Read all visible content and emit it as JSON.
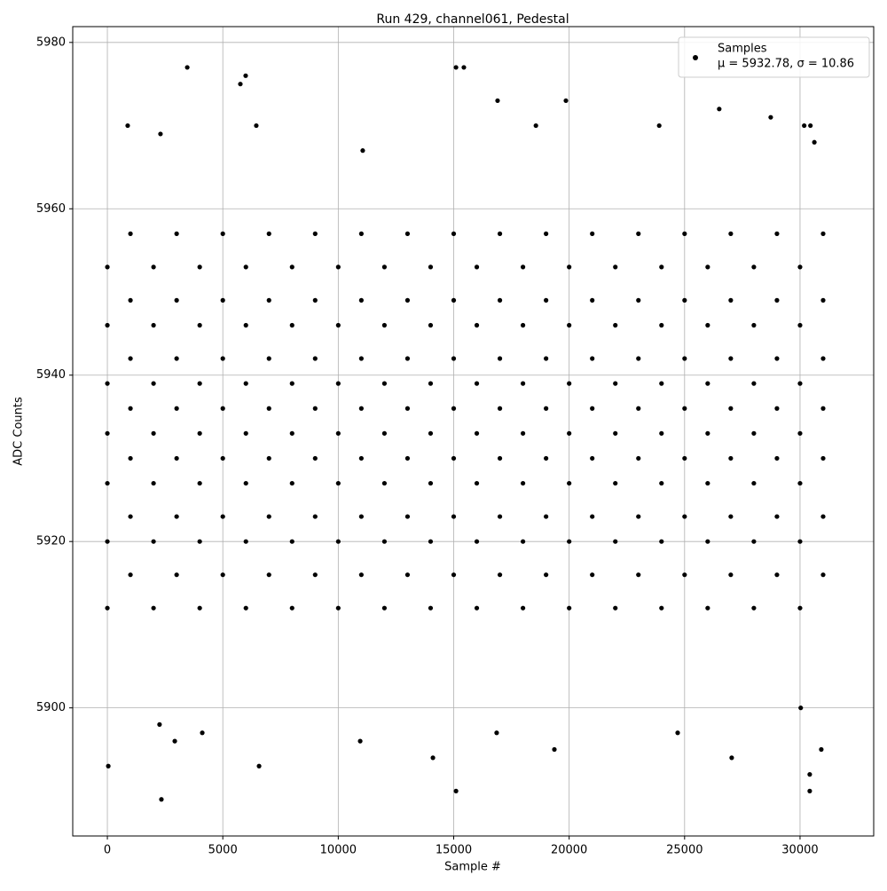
{
  "chart_data": {
    "type": "scatter",
    "title": "Run 429, channel061, Pedestal",
    "x_label": "Sample #",
    "y_label": "ADC Counts",
    "legend_note": "μ = 5932.78, σ = 10.86",
    "legend_position": "upper right",
    "grid": true,
    "xlim": [
      -1500,
      33190
    ],
    "ylim": [
      5884.6,
      5981.9
    ],
    "xticks": [
      0,
      5000,
      10000,
      15000,
      20000,
      25000,
      30000
    ],
    "yticks": [
      5900,
      5920,
      5940,
      5960,
      5980
    ],
    "x": [
      0,
      0,
      0,
      0,
      0,
      0,
      0,
      1000,
      1000,
      1000,
      1000,
      1000,
      1000,
      1000,
      2000,
      2000,
      2000,
      2000,
      2000,
      2000,
      2000,
      3000,
      3000,
      3000,
      3000,
      3000,
      3000,
      3000,
      4000,
      4000,
      4000,
      4000,
      4000,
      4000,
      4000,
      5000,
      5000,
      5000,
      5000,
      5000,
      5000,
      5000,
      6000,
      6000,
      6000,
      6000,
      6000,
      6000,
      6000,
      7000,
      7000,
      7000,
      7000,
      7000,
      7000,
      7000,
      8000,
      8000,
      8000,
      8000,
      8000,
      8000,
      8000,
      9000,
      9000,
      9000,
      9000,
      9000,
      9000,
      9000,
      10000,
      10000,
      10000,
      10000,
      10000,
      10000,
      10000,
      11000,
      11000,
      11000,
      11000,
      11000,
      11000,
      11000,
      12000,
      12000,
      12000,
      12000,
      12000,
      12000,
      12000,
      13000,
      13000,
      13000,
      13000,
      13000,
      13000,
      13000,
      14000,
      14000,
      14000,
      14000,
      14000,
      14000,
      14000,
      15000,
      15000,
      15000,
      15000,
      15000,
      15000,
      15000,
      16000,
      16000,
      16000,
      16000,
      16000,
      16000,
      16000,
      17000,
      17000,
      17000,
      17000,
      17000,
      17000,
      17000,
      18000,
      18000,
      18000,
      18000,
      18000,
      18000,
      18000,
      19000,
      19000,
      19000,
      19000,
      19000,
      19000,
      19000,
      20000,
      20000,
      20000,
      20000,
      20000,
      20000,
      20000,
      21000,
      21000,
      21000,
      21000,
      21000,
      21000,
      21000,
      22000,
      22000,
      22000,
      22000,
      22000,
      22000,
      22000,
      23000,
      23000,
      23000,
      23000,
      23000,
      23000,
      23000,
      24000,
      24000,
      24000,
      24000,
      24000,
      24000,
      24000,
      25000,
      25000,
      25000,
      25000,
      25000,
      25000,
      25000,
      26000,
      26000,
      26000,
      26000,
      26000,
      26000,
      26000,
      27000,
      27000,
      27000,
      27000,
      27000,
      27000,
      27000,
      28000,
      28000,
      28000,
      28000,
      28000,
      28000,
      28000,
      29000,
      29000,
      29000,
      29000,
      29000,
      29000,
      29000,
      30000,
      30000,
      30000,
      30000,
      30000,
      30000,
      30000,
      31000,
      31000,
      31000,
      31000,
      31000,
      31000,
      31000,
      40,
      2340,
      2300,
      3460,
      5760,
      5990,
      11060,
      15100,
      15440,
      16900,
      19860,
      26500,
      28730,
      30180,
      30450,
      2260,
      2920,
      4110,
      6570,
      10950,
      14100,
      15100,
      16860,
      19360,
      24700,
      27040,
      30420,
      30920,
      30420,
      30030,
      880,
      6450,
      18560,
      23900,
      30620
    ],
    "series": [
      {
        "name": "Samples",
        "color": "#000000",
        "values": [
          5912,
          5920,
          5927,
          5933,
          5939,
          5946,
          5953,
          5916,
          5923,
          5930,
          5936,
          5942,
          5949,
          5957,
          5912,
          5920,
          5927,
          5933,
          5939,
          5946,
          5953,
          5916,
          5923,
          5930,
          5936,
          5942,
          5949,
          5957,
          5912,
          5920,
          5927,
          5933,
          5939,
          5946,
          5953,
          5916,
          5923,
          5930,
          5936,
          5942,
          5949,
          5957,
          5912,
          5920,
          5927,
          5933,
          5939,
          5946,
          5953,
          5916,
          5923,
          5930,
          5936,
          5942,
          5949,
          5957,
          5912,
          5920,
          5927,
          5933,
          5939,
          5946,
          5953,
          5916,
          5923,
          5930,
          5936,
          5942,
          5949,
          5957,
          5912,
          5920,
          5927,
          5933,
          5939,
          5946,
          5953,
          5916,
          5923,
          5930,
          5936,
          5942,
          5949,
          5957,
          5912,
          5920,
          5927,
          5933,
          5939,
          5946,
          5953,
          5916,
          5923,
          5930,
          5936,
          5942,
          5949,
          5957,
          5912,
          5920,
          5927,
          5933,
          5939,
          5946,
          5953,
          5916,
          5923,
          5930,
          5936,
          5942,
          5949,
          5957,
          5912,
          5920,
          5927,
          5933,
          5939,
          5946,
          5953,
          5916,
          5923,
          5930,
          5936,
          5942,
          5949,
          5957,
          5912,
          5920,
          5927,
          5933,
          5939,
          5946,
          5953,
          5916,
          5923,
          5930,
          5936,
          5942,
          5949,
          5957,
          5912,
          5920,
          5927,
          5933,
          5939,
          5946,
          5953,
          5916,
          5923,
          5930,
          5936,
          5942,
          5949,
          5957,
          5912,
          5920,
          5927,
          5933,
          5939,
          5946,
          5953,
          5916,
          5923,
          5930,
          5936,
          5942,
          5949,
          5957,
          5912,
          5920,
          5927,
          5933,
          5939,
          5946,
          5953,
          5916,
          5923,
          5930,
          5936,
          5942,
          5949,
          5957,
          5912,
          5920,
          5927,
          5933,
          5939,
          5946,
          5953,
          5916,
          5923,
          5930,
          5936,
          5942,
          5949,
          5957,
          5912,
          5920,
          5927,
          5933,
          5939,
          5946,
          5953,
          5916,
          5923,
          5930,
          5936,
          5942,
          5949,
          5957,
          5912,
          5920,
          5927,
          5933,
          5939,
          5946,
          5953,
          5916,
          5923,
          5930,
          5936,
          5942,
          5949,
          5957,
          5893,
          5889,
          5969,
          5977,
          5975,
          5976,
          5967,
          5977,
          5977,
          5973,
          5973,
          5972,
          5971,
          5970,
          5970,
          5898,
          5896,
          5897,
          5893,
          5896,
          5894,
          5890,
          5897,
          5895,
          5897,
          5894,
          5892,
          5895,
          5890,
          5900,
          5970,
          5970,
          5970,
          5970,
          5968
        ]
      }
    ]
  }
}
